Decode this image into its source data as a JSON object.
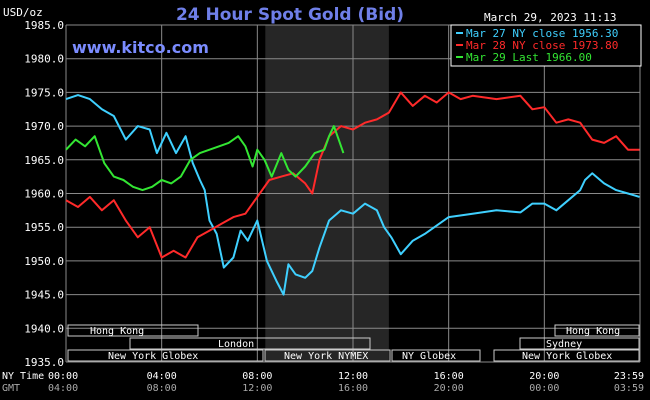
{
  "page": {
    "title": "24 Hour Spot Gold (Bid)",
    "timestamp": "March 29, 2023 11:13",
    "watermark": "www.kitco.com",
    "unit_label": "USD/oz",
    "ny_time_label": "NY Time",
    "gmt_label": "GMT"
  },
  "colors": {
    "background": "#000000",
    "grid": "#8a8a8a",
    "text": "#ffffff",
    "title": "#6f7fe8",
    "watermark": "#7b8cff",
    "legend_border": "#ffffff",
    "mar27": "#3fd0ff",
    "mar28": "#ff2a2a",
    "mar29": "#33e633",
    "shade": "#262626"
  },
  "sessions": {
    "hong_kong_1": "Hong Kong",
    "hong_kong_2": "Hong Kong",
    "london": "London",
    "sydney": "Sydney",
    "ny_globex_1": "New York Globex",
    "ny_nymex": "New York NYMEX",
    "ny_globex_2": "NY Globex",
    "ny_globex_3": "New York Globex"
  },
  "chart_data": {
    "type": "line",
    "title": "24 Hour Spot Gold (Bid)",
    "ylabel": "USD/oz",
    "xlabel": "NY Time",
    "ylim": [
      1935.0,
      1985.0
    ],
    "xlim": [
      0,
      24
    ],
    "y_ticks": [
      "1985.0",
      "1980.0",
      "1975.0",
      "1970.0",
      "1965.0",
      "1960.0",
      "1955.0",
      "1950.0",
      "1945.0",
      "1940.0",
      "1935.0"
    ],
    "x_ticks_ny": [
      "00:00",
      "04:00",
      "08:00",
      "12:00",
      "16:00",
      "20:00",
      "23:59"
    ],
    "x_ticks_gmt": [
      "04:00",
      "08:00",
      "12:00",
      "16:00",
      "20:00",
      "00:00",
      "03:59"
    ],
    "shaded_range": [
      8.3333,
      13.5
    ],
    "grid": true,
    "legend_position": "top-right",
    "series": [
      {
        "name": "Mar 27 NY close 1956.30",
        "color": "#3fd0ff",
        "x": [
          0,
          0.5,
          1.0,
          1.5,
          2.0,
          2.5,
          3.0,
          3.5,
          3.8,
          4.2,
          4.6,
          5.0,
          5.3,
          5.6,
          5.8,
          6.0,
          6.3,
          6.6,
          7.0,
          7.3,
          7.6,
          8.0,
          8.4,
          8.8,
          9.1,
          9.3,
          9.6,
          10.0,
          10.3,
          10.6,
          11.0,
          11.5,
          12.0,
          12.5,
          13.0,
          13.3,
          13.6,
          14.0,
          14.5,
          15.0,
          16.0,
          17.0,
          18.0,
          19.0,
          19.5,
          20.0,
          20.5,
          21.0,
          21.5,
          21.7,
          22.0,
          22.5,
          23.0,
          23.5,
          23.98
        ],
        "y": [
          1974.0,
          1974.6,
          1974.0,
          1972.5,
          1971.5,
          1968.0,
          1970.0,
          1969.5,
          1966.0,
          1969.0,
          1966.0,
          1968.5,
          1964.5,
          1962.0,
          1960.5,
          1956.0,
          1954.0,
          1949.0,
          1950.5,
          1954.5,
          1953.0,
          1956.0,
          1950.0,
          1947.0,
          1945.0,
          1949.5,
          1948.0,
          1947.5,
          1948.5,
          1952.0,
          1956.0,
          1957.5,
          1957.0,
          1958.5,
          1957.5,
          1955.0,
          1953.5,
          1951.0,
          1953.0,
          1954.0,
          1956.5,
          1957.0,
          1957.5,
          1957.2,
          1958.5,
          1958.5,
          1957.5,
          1959.0,
          1960.5,
          1962.0,
          1963.0,
          1961.5,
          1960.5,
          1960.0,
          1959.5
        ]
      },
      {
        "name": "Mar 28 NY close 1973.80",
        "color": "#ff2a2a",
        "x": [
          0,
          0.5,
          1.0,
          1.5,
          2.0,
          2.5,
          3.0,
          3.5,
          4.0,
          4.5,
          5.0,
          5.5,
          6.0,
          6.5,
          7.0,
          7.5,
          8.0,
          8.5,
          9.0,
          9.5,
          10.0,
          10.3,
          10.6,
          11.0,
          11.5,
          12.0,
          12.5,
          13.0,
          13.5,
          14.0,
          14.5,
          15.0,
          15.5,
          16.0,
          16.5,
          17.0,
          18.0,
          19.0,
          19.5,
          20.0,
          20.5,
          21.0,
          21.5,
          22.0,
          22.5,
          23.0,
          23.5,
          23.98
        ],
        "y": [
          1959.0,
          1958.0,
          1959.5,
          1957.5,
          1959.0,
          1956.0,
          1953.5,
          1955.0,
          1950.5,
          1951.5,
          1950.5,
          1953.5,
          1954.5,
          1955.5,
          1956.5,
          1957.0,
          1959.5,
          1962.0,
          1962.5,
          1963.0,
          1961.5,
          1960.0,
          1965.0,
          1968.5,
          1970.0,
          1969.5,
          1970.5,
          1971.0,
          1972.0,
          1975.0,
          1973.0,
          1974.5,
          1973.5,
          1975.0,
          1974.0,
          1974.5,
          1974.0,
          1974.5,
          1972.5,
          1972.8,
          1970.5,
          1971.0,
          1970.5,
          1968.0,
          1967.5,
          1968.5,
          1966.5,
          1966.5
        ]
      },
      {
        "name": "Mar 29 Last 1966.00",
        "color": "#33e633",
        "x": [
          0,
          0.4,
          0.8,
          1.2,
          1.6,
          2.0,
          2.4,
          2.8,
          3.2,
          3.6,
          4.0,
          4.4,
          4.8,
          5.2,
          5.6,
          6.0,
          6.4,
          6.8,
          7.2,
          7.5,
          7.8,
          8.0,
          8.3,
          8.6,
          9.0,
          9.3,
          9.6,
          10.0,
          10.4,
          10.8,
          11.0,
          11.2,
          11.4,
          11.6
        ],
        "y": [
          1966.5,
          1968.0,
          1967.0,
          1968.5,
          1964.5,
          1962.5,
          1962.0,
          1961.0,
          1960.5,
          1961.0,
          1962.0,
          1961.5,
          1962.5,
          1965.0,
          1966.0,
          1966.5,
          1967.0,
          1967.5,
          1968.5,
          1967.0,
          1964.0,
          1966.5,
          1965.0,
          1962.5,
          1966.0,
          1963.5,
          1962.5,
          1964.0,
          1966.0,
          1966.5,
          1968.5,
          1970.0,
          1968.0,
          1966.0
        ]
      }
    ]
  }
}
